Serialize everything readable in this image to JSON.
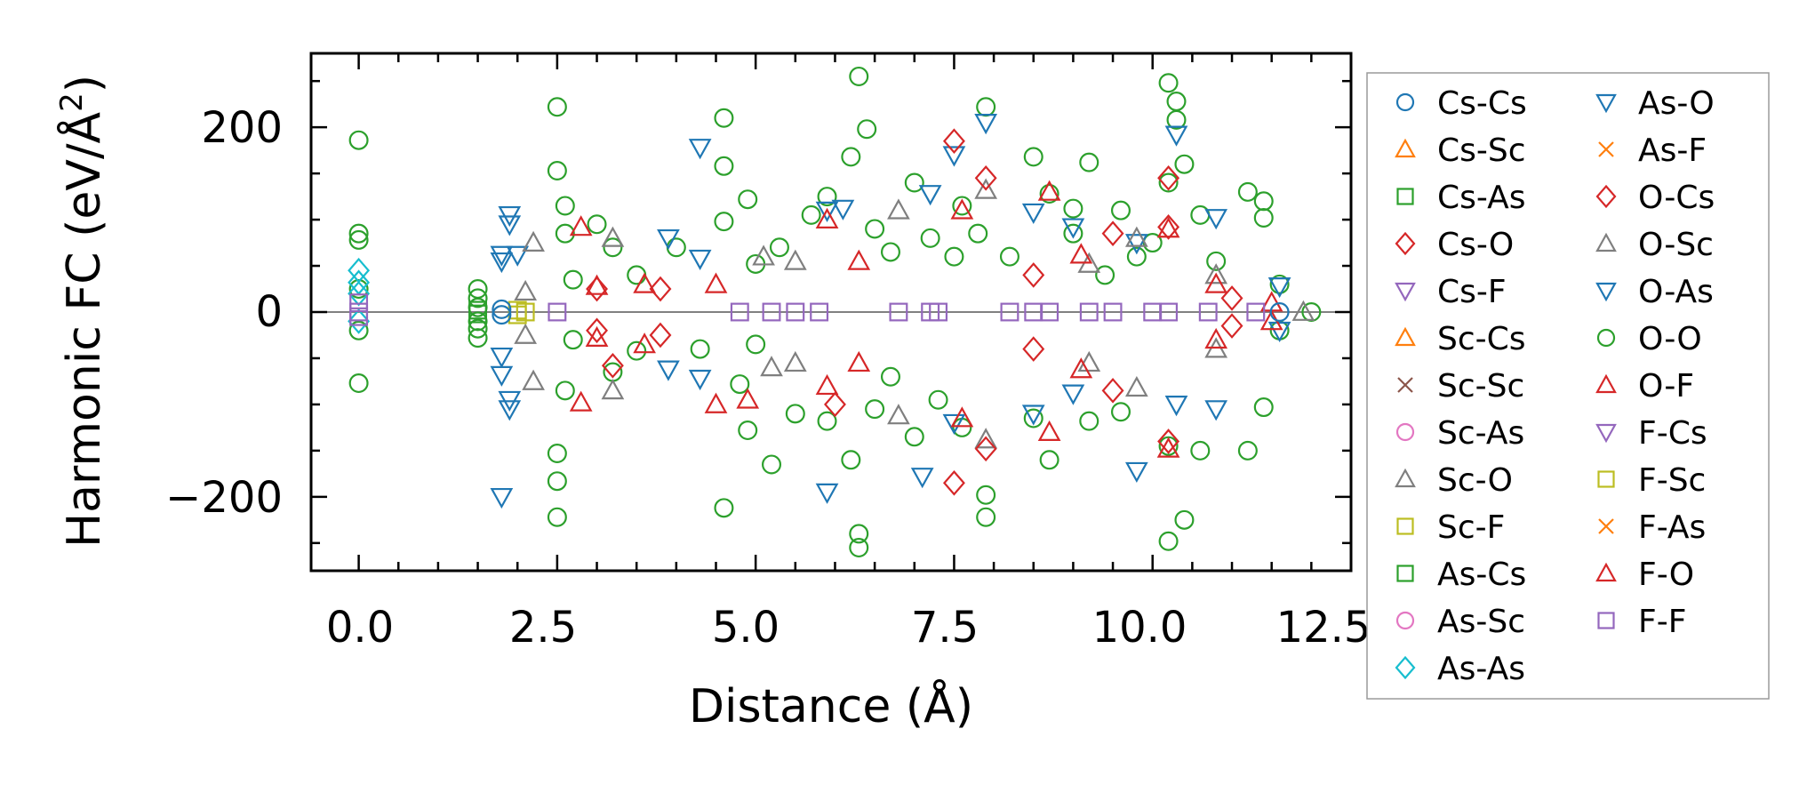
{
  "chart_data": {
    "type": "scatter",
    "title": "",
    "xlabel": "Distance (Å)",
    "ylabel_main": "Harmonic FC (eV/Å",
    "ylabel_sup": "2",
    "ylabel_close": ")",
    "xlim": [
      -0.6,
      12.5
    ],
    "ylim": [
      -280,
      280
    ],
    "xticks": [
      0.0,
      2.5,
      5.0,
      7.5,
      10.0,
      12.5
    ],
    "xtick_labels": [
      "0.0",
      "2.5",
      "5.0",
      "7.5",
      "10.0",
      "12.5"
    ],
    "yticks": [
      -200,
      0,
      200
    ],
    "ytick_labels": [
      "−200",
      "0",
      "200"
    ],
    "legend_position": "right, outside plot",
    "legend": [
      {
        "label": "Cs-Cs",
        "marker": "circle",
        "color": "#1f77b4"
      },
      {
        "label": "Cs-Sc",
        "marker": "triangle-up",
        "color": "#ff7f0e"
      },
      {
        "label": "Cs-As",
        "marker": "square",
        "color": "#2ca02c"
      },
      {
        "label": "Cs-O",
        "marker": "diamond",
        "color": "#d62728"
      },
      {
        "label": "Cs-F",
        "marker": "triangle-down",
        "color": "#9467bd"
      },
      {
        "label": "Sc-Cs",
        "marker": "triangle-up",
        "color": "#ff7f0e"
      },
      {
        "label": "Sc-Sc",
        "marker": "x",
        "color": "#8c564b"
      },
      {
        "label": "Sc-As",
        "marker": "circle",
        "color": "#e377c2"
      },
      {
        "label": "Sc-O",
        "marker": "triangle-up",
        "color": "#7f7f7f"
      },
      {
        "label": "Sc-F",
        "marker": "square",
        "color": "#bcbd22"
      },
      {
        "label": "As-Cs",
        "marker": "square",
        "color": "#2ca02c"
      },
      {
        "label": "As-Sc",
        "marker": "circle",
        "color": "#e377c2"
      },
      {
        "label": "As-As",
        "marker": "diamond",
        "color": "#17becf"
      },
      {
        "label": "As-O",
        "marker": "triangle-down",
        "color": "#1f77b4"
      },
      {
        "label": "As-F",
        "marker": "x",
        "color": "#ff7f0e"
      },
      {
        "label": "O-Cs",
        "marker": "diamond",
        "color": "#d62728"
      },
      {
        "label": "O-Sc",
        "marker": "triangle-up",
        "color": "#7f7f7f"
      },
      {
        "label": "O-As",
        "marker": "triangle-down",
        "color": "#1f77b4"
      },
      {
        "label": "O-O",
        "marker": "circle",
        "color": "#2ca02c"
      },
      {
        "label": "O-F",
        "marker": "triangle-up",
        "color": "#d62728"
      },
      {
        "label": "F-Cs",
        "marker": "triangle-down",
        "color": "#9467bd"
      },
      {
        "label": "F-Sc",
        "marker": "square",
        "color": "#bcbd22"
      },
      {
        "label": "F-As",
        "marker": "x",
        "color": "#ff7f0e"
      },
      {
        "label": "F-O",
        "marker": "triangle-up",
        "color": "#d62728"
      },
      {
        "label": "F-F",
        "marker": "square",
        "color": "#9467bd"
      }
    ],
    "series": [
      {
        "name": "O-O",
        "marker": "circle",
        "color": "#2ca02c",
        "points": [
          [
            0.0,
            186
          ],
          [
            0.0,
            85
          ],
          [
            0.0,
            78
          ],
          [
            0.0,
            -77
          ],
          [
            0.0,
            25
          ],
          [
            0.0,
            -20
          ],
          [
            1.5,
            25
          ],
          [
            1.5,
            15
          ],
          [
            1.5,
            -10
          ],
          [
            1.5,
            -28
          ],
          [
            1.5,
            5
          ],
          [
            1.5,
            -18
          ],
          [
            2.5,
            222
          ],
          [
            2.5,
            153
          ],
          [
            2.5,
            -153
          ],
          [
            2.5,
            -183
          ],
          [
            2.5,
            -222
          ],
          [
            2.6,
            115
          ],
          [
            2.6,
            85
          ],
          [
            2.6,
            -85
          ],
          [
            2.7,
            35
          ],
          [
            2.7,
            -30
          ],
          [
            3.0,
            95
          ],
          [
            3.2,
            70
          ],
          [
            3.2,
            -65
          ],
          [
            3.5,
            40
          ],
          [
            3.5,
            -42
          ],
          [
            4.0,
            70
          ],
          [
            4.3,
            -40
          ],
          [
            4.6,
            210
          ],
          [
            4.6,
            158
          ],
          [
            4.6,
            -212
          ],
          [
            4.6,
            98
          ],
          [
            4.8,
            -78
          ],
          [
            4.9,
            122
          ],
          [
            4.9,
            -128
          ],
          [
            5.0,
            52
          ],
          [
            5.0,
            -35
          ],
          [
            5.2,
            -165
          ],
          [
            5.3,
            70
          ],
          [
            5.5,
            -110
          ],
          [
            5.7,
            105
          ],
          [
            5.9,
            125
          ],
          [
            5.9,
            -118
          ],
          [
            6.2,
            168
          ],
          [
            6.2,
            -160
          ],
          [
            6.3,
            255
          ],
          [
            6.3,
            -240
          ],
          [
            6.3,
            -255
          ],
          [
            6.4,
            198
          ],
          [
            6.5,
            90
          ],
          [
            6.5,
            -105
          ],
          [
            6.7,
            65
          ],
          [
            6.7,
            -70
          ],
          [
            7.0,
            140
          ],
          [
            7.0,
            -135
          ],
          [
            7.2,
            80
          ],
          [
            7.3,
            -95
          ],
          [
            7.5,
            60
          ],
          [
            7.6,
            115
          ],
          [
            7.6,
            -125
          ],
          [
            7.8,
            85
          ],
          [
            7.9,
            222
          ],
          [
            7.9,
            -222
          ],
          [
            7.9,
            -198
          ],
          [
            8.2,
            60
          ],
          [
            8.5,
            168
          ],
          [
            8.5,
            -115
          ],
          [
            8.7,
            128
          ],
          [
            8.7,
            -160
          ],
          [
            9.0,
            85
          ],
          [
            9.0,
            112
          ],
          [
            9.2,
            162
          ],
          [
            9.2,
            -118
          ],
          [
            9.4,
            40
          ],
          [
            9.6,
            110
          ],
          [
            9.6,
            -108
          ],
          [
            9.8,
            60
          ],
          [
            10.0,
            75
          ],
          [
            10.2,
            248
          ],
          [
            10.2,
            140
          ],
          [
            10.2,
            -145
          ],
          [
            10.2,
            -248
          ],
          [
            10.3,
            228
          ],
          [
            10.3,
            208
          ],
          [
            10.4,
            160
          ],
          [
            10.4,
            -225
          ],
          [
            10.6,
            105
          ],
          [
            10.6,
            -150
          ],
          [
            10.8,
            55
          ],
          [
            11.2,
            130
          ],
          [
            11.2,
            -150
          ],
          [
            11.4,
            120
          ],
          [
            11.4,
            102
          ],
          [
            11.4,
            -103
          ],
          [
            11.6,
            30
          ],
          [
            11.6,
            -20
          ],
          [
            12.0,
            0
          ]
        ]
      },
      {
        "name": "O-As",
        "marker": "triangle-down",
        "color": "#1f77b4",
        "points": [
          [
            1.8,
            62
          ],
          [
            1.8,
            55
          ],
          [
            1.8,
            -48
          ],
          [
            1.8,
            -68
          ],
          [
            1.8,
            -200
          ],
          [
            1.9,
            105
          ],
          [
            1.9,
            95
          ],
          [
            1.9,
            -95
          ],
          [
            1.9,
            -105
          ],
          [
            2.0,
            62
          ],
          [
            3.9,
            80
          ],
          [
            3.9,
            -62
          ],
          [
            4.3,
            178
          ],
          [
            4.3,
            -72
          ],
          [
            4.3,
            58
          ],
          [
            5.9,
            110
          ],
          [
            5.9,
            -195
          ],
          [
            6.1,
            112
          ],
          [
            7.1,
            -178
          ],
          [
            7.2,
            128
          ],
          [
            7.5,
            170
          ],
          [
            7.5,
            -120
          ],
          [
            7.9,
            205
          ],
          [
            8.5,
            108
          ],
          [
            8.5,
            -110
          ],
          [
            9.0,
            92
          ],
          [
            9.0,
            -88
          ],
          [
            9.8,
            75
          ],
          [
            9.8,
            -172
          ],
          [
            10.3,
            192
          ],
          [
            10.3,
            -100
          ],
          [
            10.8,
            102
          ],
          [
            10.8,
            -105
          ],
          [
            11.6,
            28
          ],
          [
            11.6,
            -20
          ]
        ]
      },
      {
        "name": "O-Sc",
        "marker": "triangle-up",
        "color": "#7f7f7f",
        "points": [
          [
            2.2,
            75
          ],
          [
            2.2,
            -75
          ],
          [
            2.1,
            22
          ],
          [
            2.1,
            -25
          ],
          [
            3.2,
            80
          ],
          [
            3.2,
            -85
          ],
          [
            5.1,
            60
          ],
          [
            5.2,
            -60
          ],
          [
            5.5,
            55
          ],
          [
            5.5,
            -55
          ],
          [
            6.8,
            110
          ],
          [
            6.8,
            -112
          ],
          [
            7.9,
            132
          ],
          [
            7.9,
            -138
          ],
          [
            9.2,
            52
          ],
          [
            9.2,
            -55
          ],
          [
            9.8,
            80
          ],
          [
            9.8,
            -82
          ],
          [
            10.8,
            40
          ],
          [
            10.8,
            -40
          ],
          [
            11.9,
            0
          ]
        ]
      },
      {
        "name": "O-F",
        "marker": "triangle-up",
        "color": "#d62728",
        "points": [
          [
            2.8,
            92
          ],
          [
            2.8,
            -98
          ],
          [
            3.0,
            28
          ],
          [
            3.0,
            -28
          ],
          [
            3.6,
            30
          ],
          [
            3.6,
            -35
          ],
          [
            4.5,
            -100
          ],
          [
            4.5,
            30
          ],
          [
            4.9,
            -95
          ],
          [
            5.9,
            100
          ],
          [
            5.9,
            -80
          ],
          [
            6.3,
            55
          ],
          [
            6.3,
            -55
          ],
          [
            7.6,
            110
          ],
          [
            7.6,
            -115
          ],
          [
            8.7,
            130
          ],
          [
            8.7,
            -130
          ],
          [
            9.1,
            62
          ],
          [
            9.1,
            -62
          ],
          [
            10.2,
            90
          ],
          [
            10.2,
            -148
          ],
          [
            10.8,
            30
          ],
          [
            10.8,
            -30
          ],
          [
            11.5,
            10
          ],
          [
            11.5,
            -10
          ]
        ]
      },
      {
        "name": "O-Cs",
        "marker": "diamond",
        "color": "#d62728",
        "points": [
          [
            3.0,
            25
          ],
          [
            3.0,
            -20
          ],
          [
            3.2,
            -58
          ],
          [
            3.8,
            25
          ],
          [
            3.8,
            -25
          ],
          [
            6.0,
            -100
          ],
          [
            7.5,
            185
          ],
          [
            7.5,
            -185
          ],
          [
            7.9,
            145
          ],
          [
            7.9,
            -148
          ],
          [
            8.5,
            40
          ],
          [
            8.5,
            -40
          ],
          [
            9.5,
            85
          ],
          [
            9.5,
            -85
          ],
          [
            10.2,
            92
          ],
          [
            10.2,
            145
          ],
          [
            10.2,
            -140
          ],
          [
            11.0,
            15
          ],
          [
            11.0,
            -15
          ]
        ]
      },
      {
        "name": "As-As",
        "marker": "diamond",
        "color": "#17becf",
        "points": [
          [
            0.0,
            45
          ],
          [
            0.0,
            32
          ],
          [
            0.0,
            20
          ],
          [
            0.0,
            -10
          ]
        ]
      },
      {
        "name": "F-F",
        "marker": "square",
        "color": "#9467bd",
        "points": [
          [
            0.0,
            0
          ],
          [
            0.0,
            10
          ],
          [
            0.0,
            -5
          ],
          [
            2.5,
            0
          ],
          [
            4.8,
            0
          ],
          [
            5.2,
            0
          ],
          [
            5.5,
            0
          ],
          [
            5.8,
            0
          ],
          [
            6.8,
            0
          ],
          [
            7.2,
            0
          ],
          [
            7.3,
            0
          ],
          [
            8.2,
            0
          ],
          [
            8.5,
            0
          ],
          [
            8.7,
            0
          ],
          [
            9.2,
            0
          ],
          [
            9.5,
            0
          ],
          [
            10.0,
            0
          ],
          [
            10.2,
            0
          ],
          [
            10.7,
            0
          ],
          [
            11.3,
            0
          ]
        ]
      },
      {
        "name": "Sc-F",
        "marker": "square",
        "color": "#bcbd22",
        "points": [
          [
            2.0,
            2
          ],
          [
            2.0,
            -3
          ],
          [
            2.1,
            0
          ]
        ]
      },
      {
        "name": "Cs-As",
        "marker": "square",
        "color": "#2ca02c",
        "points": [
          [
            1.5,
            2
          ],
          [
            1.5,
            -2
          ]
        ]
      },
      {
        "name": "Cs-Cs",
        "marker": "circle",
        "color": "#1f77b4",
        "points": [
          [
            1.8,
            3
          ],
          [
            1.8,
            -3
          ],
          [
            11.6,
            0
          ]
        ]
      }
    ]
  }
}
